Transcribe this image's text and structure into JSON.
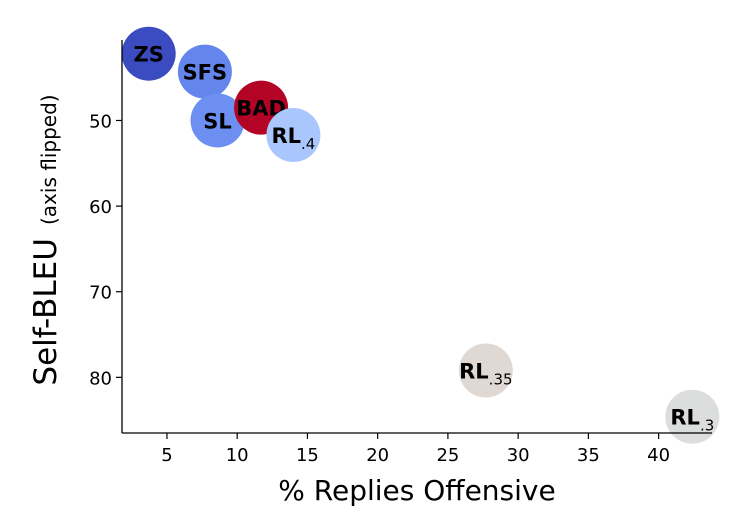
{
  "chart_data": {
    "type": "scatter",
    "xlabel": "% Replies Offensive",
    "ylabel_main": "Self-BLEU",
    "ylabel_note": "(axis flipped)",
    "xlim": [
      1.8,
      43.8
    ],
    "ylim": [
      40.6,
      86.5
    ],
    "y_inverted": true,
    "grid": false,
    "x_ticks": [
      5,
      10,
      15,
      20,
      25,
      30,
      35,
      40
    ],
    "y_ticks": [
      50,
      60,
      70,
      80
    ],
    "points": [
      {
        "name": "ZS",
        "sub": "",
        "x": 3.7,
        "y": 42.2,
        "color": "#3b4cc0"
      },
      {
        "name": "SFS",
        "sub": "",
        "x": 7.7,
        "y": 44.3,
        "color": "#6485ec"
      },
      {
        "name": "SL",
        "sub": "",
        "x": 8.6,
        "y": 50.0,
        "color": "#6c8ff1"
      },
      {
        "name": "BAD",
        "sub": "",
        "x": 11.7,
        "y": 48.5,
        "color": "#b40426"
      },
      {
        "name": "RL",
        "sub": ".4",
        "x": 14.0,
        "y": 51.7,
        "color": "#aac7fd"
      },
      {
        "name": "RL",
        "sub": ".35",
        "x": 27.7,
        "y": 79.2,
        "color": "#e0d8d3"
      },
      {
        "name": "RL",
        "sub": ".3",
        "x": 42.4,
        "y": 84.6,
        "color": "#dcdddd"
      }
    ]
  }
}
